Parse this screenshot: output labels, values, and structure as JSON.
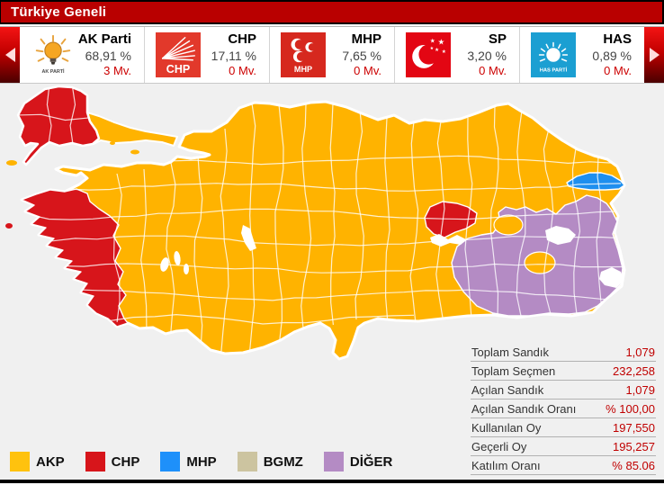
{
  "title_bar": {
    "title": "Türkiye Geneli"
  },
  "party_bar": {
    "parties": [
      {
        "name": "AK Parti",
        "percent": "68,91 %",
        "seats": "3 Mv.",
        "color": "#ffffff",
        "logo_caption": "AK PARTİ"
      },
      {
        "name": "CHP",
        "percent": "17,11 %",
        "seats": "0 Mv.",
        "color": "#e2392b",
        "logo_caption": "CHP"
      },
      {
        "name": "MHP",
        "percent": "7,65 %",
        "seats": "0 Mv.",
        "color": "#d6281e",
        "logo_caption": "MHP"
      },
      {
        "name": "SP",
        "percent": "3,20 %",
        "seats": "0 Mv.",
        "color": "#e30613",
        "logo_caption": ""
      },
      {
        "name": "HAS",
        "percent": "0,89 %",
        "seats": "0 Mv.",
        "color": "#1b9fd2",
        "logo_caption": "HAS PARTİ"
      }
    ]
  },
  "map": {
    "region_colors": {
      "akp": "#FFB300",
      "chp": "#D7151B",
      "mhp": "#1E8FEF",
      "bgmz": "#CCC4A0",
      "diger": "#B48BC4",
      "water": "#FFFFFF",
      "background": "#F0F0F0"
    }
  },
  "legend": {
    "items": [
      {
        "label": "AKP",
        "color": "#FFC20E"
      },
      {
        "label": "CHP",
        "color": "#D7151B"
      },
      {
        "label": "MHP",
        "color": "#1E90FA"
      },
      {
        "label": "BGMZ",
        "color": "#CCC4A0"
      },
      {
        "label": "DİĞER",
        "color": "#B48BC4"
      }
    ]
  },
  "stats_table": {
    "rows": [
      {
        "label": "Toplam Sandık",
        "value": "1,079"
      },
      {
        "label": "Toplam Seçmen",
        "value": "232,258"
      },
      {
        "label": "Açılan Sandık",
        "value": "1,079"
      },
      {
        "label": "Açılan Sandık Oranı",
        "value": "% 100,00"
      },
      {
        "label": "Kullanılan Oy",
        "value": "197,550"
      },
      {
        "label": "Geçerli Oy",
        "value": "195,257"
      },
      {
        "label": "Katılım Oranı",
        "value": "% 85.06"
      }
    ]
  }
}
